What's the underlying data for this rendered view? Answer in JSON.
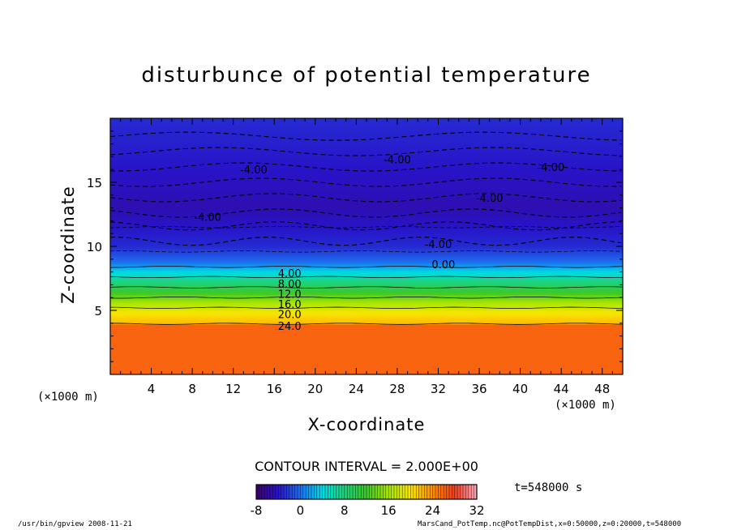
{
  "chart_data": {
    "type": "heatmap",
    "title": "disturbunce of potential temperature",
    "xlabel": "X-coordinate",
    "ylabel": "Z-coordinate",
    "x_unit": "(×1000 m)",
    "y_unit": "(×1000 m)",
    "xlim": [
      0,
      50
    ],
    "ylim": [
      0,
      20
    ],
    "x_ticks": [
      4,
      8,
      12,
      16,
      20,
      24,
      28,
      32,
      36,
      40,
      44,
      48
    ],
    "y_ticks": [
      5,
      10,
      15
    ],
    "contour_interval": "CONTOUR INTERVAL = 2.000E+00",
    "colorbar": {
      "min": -8,
      "max": 32,
      "ticks": [
        -8,
        0,
        8,
        16,
        24,
        32
      ]
    },
    "profile_by_height": [
      {
        "z": 0.0,
        "value": 26
      },
      {
        "z": 3.9,
        "value": 26
      },
      {
        "z": 4.0,
        "value": 22
      },
      {
        "z": 4.8,
        "value": 20
      },
      {
        "z": 5.6,
        "value": 16
      },
      {
        "z": 6.4,
        "value": 12
      },
      {
        "z": 7.2,
        "value": 8
      },
      {
        "z": 8.0,
        "value": 4
      },
      {
        "z": 8.8,
        "value": 0
      },
      {
        "z": 10.0,
        "value": -3
      },
      {
        "z": 13.0,
        "value": -5
      },
      {
        "z": 16.0,
        "value": -4
      },
      {
        "z": 20.0,
        "value": -3
      }
    ],
    "contour_labels": [
      {
        "text": "4.00",
        "x": 17.5,
        "z": 7.9
      },
      {
        "text": "8.00",
        "x": 17.5,
        "z": 7.1
      },
      {
        "text": "12.0",
        "x": 17.5,
        "z": 6.3
      },
      {
        "text": "16.0",
        "x": 17.5,
        "z": 5.5
      },
      {
        "text": "20.0",
        "x": 17.5,
        "z": 4.7
      },
      {
        "text": "24.0",
        "x": 17.5,
        "z": 3.8
      },
      {
        "text": "0.00",
        "x": 32.5,
        "z": 8.6
      },
      {
        "text": "-4.00",
        "x": 32.0,
        "z": 10.2
      },
      {
        "text": "-4.00",
        "x": 9.5,
        "z": 12.3
      },
      {
        "text": "-4.00",
        "x": 14.0,
        "z": 16.0
      },
      {
        "text": "-4.00",
        "x": 28.0,
        "z": 16.8
      },
      {
        "text": "-4.00",
        "x": 37.0,
        "z": 13.8
      },
      {
        "text": "-4.00",
        "x": 43.0,
        "z": 16.2
      }
    ],
    "time": "t=548000 s",
    "footer_left": "/usr/bin/gpview   2008-11-21",
    "footer_right": "MarsCand_PotTemp.nc@PotTempDist,x=0:50000,z=0:20000,t=548000"
  }
}
